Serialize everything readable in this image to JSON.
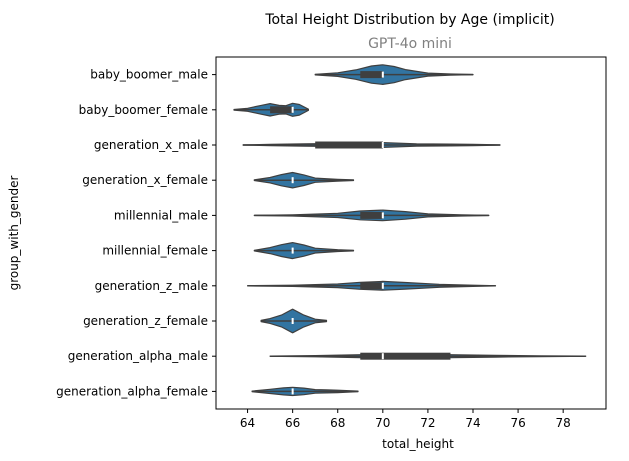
{
  "chart_data": {
    "type": "violin",
    "orientation": "horizontal",
    "title": "Total Height Distribution by Age (implicit)",
    "subtitle": "GPT-4o mini",
    "xlabel": "total_height",
    "ylabel": "group_with_gender",
    "xlim": [
      62.6,
      79.9
    ],
    "xticks": [
      64,
      66,
      68,
      70,
      72,
      74,
      76,
      78
    ],
    "grid": false,
    "fill_color": "#3274a1",
    "edge_color": "#3f3f3f",
    "categories": [
      {
        "name": "baby_boomer_male",
        "min": 67.0,
        "max": 74.0,
        "q1": 69.0,
        "median": 70.0,
        "q3": 70.0,
        "density": [
          [
            67.0,
            0.02
          ],
          [
            68.0,
            0.12
          ],
          [
            68.8,
            0.32
          ],
          [
            69.5,
            0.58
          ],
          [
            70.0,
            0.66
          ],
          [
            70.5,
            0.55
          ],
          [
            71.0,
            0.34
          ],
          [
            72.0,
            0.1
          ],
          [
            73.0,
            0.04
          ],
          [
            74.0,
            0.01
          ]
        ]
      },
      {
        "name": "baby_boomer_female",
        "min": 63.4,
        "max": 66.7,
        "q1": 65.0,
        "median": 66.0,
        "q3": 66.0,
        "density": [
          [
            63.4,
            0.02
          ],
          [
            64.0,
            0.1
          ],
          [
            64.6,
            0.3
          ],
          [
            65.0,
            0.42
          ],
          [
            65.4,
            0.3
          ],
          [
            65.7,
            0.28
          ],
          [
            66.0,
            0.44
          ],
          [
            66.3,
            0.36
          ],
          [
            66.7,
            0.04
          ]
        ]
      },
      {
        "name": "generation_x_male",
        "min": 63.8,
        "max": 75.2,
        "q1": 67.0,
        "median": 70.0,
        "q3": 70.0,
        "density": [
          [
            63.8,
            0.01
          ],
          [
            65.0,
            0.04
          ],
          [
            66.5,
            0.08
          ],
          [
            68.0,
            0.1
          ],
          [
            70.0,
            0.16
          ],
          [
            71.5,
            0.08
          ],
          [
            73.0,
            0.06
          ],
          [
            74.0,
            0.04
          ],
          [
            75.2,
            0.01
          ]
        ]
      },
      {
        "name": "generation_x_female",
        "min": 64.3,
        "max": 68.7,
        "q1": 66.0,
        "median": 66.0,
        "q3": 66.0,
        "density": [
          [
            64.3,
            0.02
          ],
          [
            65.0,
            0.18
          ],
          [
            65.5,
            0.38
          ],
          [
            66.0,
            0.52
          ],
          [
            66.5,
            0.36
          ],
          [
            67.0,
            0.14
          ],
          [
            68.0,
            0.06
          ],
          [
            68.7,
            0.02
          ]
        ]
      },
      {
        "name": "millennial_male",
        "min": 64.3,
        "max": 74.7,
        "q1": 69.0,
        "median": 70.0,
        "q3": 70.0,
        "density": [
          [
            64.3,
            0.01
          ],
          [
            66.0,
            0.04
          ],
          [
            68.0,
            0.14
          ],
          [
            69.0,
            0.3
          ],
          [
            70.0,
            0.36
          ],
          [
            71.0,
            0.26
          ],
          [
            72.0,
            0.1
          ],
          [
            73.5,
            0.04
          ],
          [
            74.7,
            0.01
          ]
        ]
      },
      {
        "name": "millennial_female",
        "min": 64.3,
        "max": 68.7,
        "q1": 66.0,
        "median": 66.0,
        "q3": 66.0,
        "density": [
          [
            64.3,
            0.02
          ],
          [
            65.0,
            0.2
          ],
          [
            65.5,
            0.4
          ],
          [
            66.0,
            0.54
          ],
          [
            66.5,
            0.38
          ],
          [
            67.0,
            0.16
          ],
          [
            68.0,
            0.06
          ],
          [
            68.7,
            0.02
          ]
        ]
      },
      {
        "name": "generation_z_male",
        "min": 64.0,
        "max": 75.0,
        "q1": 69.0,
        "median": 70.0,
        "q3": 70.0,
        "density": [
          [
            64.0,
            0.01
          ],
          [
            66.0,
            0.04
          ],
          [
            68.0,
            0.12
          ],
          [
            69.0,
            0.24
          ],
          [
            70.0,
            0.3
          ],
          [
            71.0,
            0.22
          ],
          [
            72.5,
            0.1
          ],
          [
            74.0,
            0.04
          ],
          [
            75.0,
            0.01
          ]
        ]
      },
      {
        "name": "generation_z_female",
        "min": 64.6,
        "max": 67.5,
        "q1": 66.0,
        "median": 66.0,
        "q3": 66.0,
        "density": [
          [
            64.6,
            0.04
          ],
          [
            65.0,
            0.16
          ],
          [
            65.5,
            0.4
          ],
          [
            66.0,
            0.8
          ],
          [
            66.5,
            0.4
          ],
          [
            67.0,
            0.12
          ],
          [
            67.5,
            0.04
          ]
        ]
      },
      {
        "name": "generation_alpha_male",
        "min": 65.0,
        "max": 79.0,
        "q1": 69.0,
        "median": 70.0,
        "q3": 73.0,
        "density": [
          [
            65.0,
            0.01
          ],
          [
            67.0,
            0.04
          ],
          [
            69.0,
            0.1
          ],
          [
            70.0,
            0.14
          ],
          [
            71.0,
            0.12
          ],
          [
            73.0,
            0.1
          ],
          [
            75.0,
            0.06
          ],
          [
            77.0,
            0.03
          ],
          [
            79.0,
            0.01
          ]
        ]
      },
      {
        "name": "generation_alpha_female",
        "min": 64.2,
        "max": 68.9,
        "q1": 66.0,
        "median": 66.0,
        "q3": 66.0,
        "density": [
          [
            64.2,
            0.02
          ],
          [
            65.0,
            0.14
          ],
          [
            65.6,
            0.24
          ],
          [
            66.0,
            0.28
          ],
          [
            66.5,
            0.22
          ],
          [
            67.0,
            0.12
          ],
          [
            67.5,
            0.1
          ],
          [
            68.0,
            0.08
          ],
          [
            68.9,
            0.02
          ]
        ]
      }
    ]
  }
}
